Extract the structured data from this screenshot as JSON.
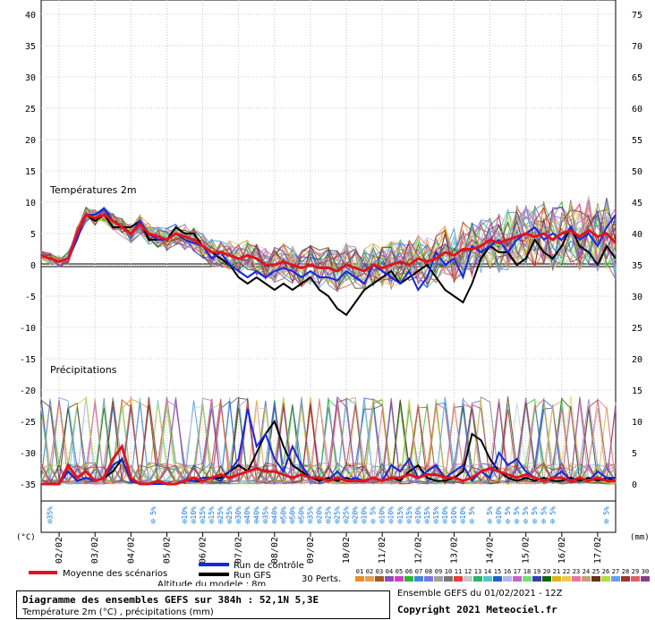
{
  "chart_data": {
    "type": "line",
    "temp_title": "Températures 2m",
    "precip_title": "Précipitations",
    "y_left_ticks": [
      "40",
      "35",
      "30",
      "25",
      "20",
      "15",
      "10",
      "5",
      "0",
      "-5",
      "-10",
      "-15",
      "-20",
      "-25",
      "-30",
      "-35"
    ],
    "y_right_ticks": [
      "75",
      "70",
      "65",
      "60",
      "55",
      "50",
      "45",
      "40",
      "35",
      "30",
      "25",
      "20",
      "15",
      "10",
      "5",
      "0"
    ],
    "y_unit_left": "(°C)",
    "y_unit_right": "(mm)",
    "temp_ylim": [
      -35,
      40
    ],
    "precip_ylim": [
      0,
      75
    ],
    "x_range_hours": [
      0,
      384
    ],
    "x_ticks": [
      "02/02",
      "03/02",
      "04/02",
      "05/02",
      "06/02",
      "07/02",
      "08/02",
      "09/02",
      "10/02",
      "11/02",
      "12/02",
      "13/02",
      "14/02",
      "15/02",
      "16/02",
      "17/02"
    ],
    "snow_probabilities": [
      {
        "hour": 6,
        "label": "35%"
      },
      {
        "hour": 75,
        "label": "5%"
      },
      {
        "hour": 96,
        "label": "10%"
      },
      {
        "hour": 102,
        "label": "10%"
      },
      {
        "hour": 108,
        "label": "15%"
      },
      {
        "hour": 114,
        "label": "15%"
      },
      {
        "hour": 120,
        "label": "25%"
      },
      {
        "hour": 126,
        "label": "25%"
      },
      {
        "hour": 132,
        "label": "30%"
      },
      {
        "hour": 138,
        "label": "40%"
      },
      {
        "hour": 144,
        "label": "40%"
      },
      {
        "hour": 150,
        "label": "35%"
      },
      {
        "hour": 156,
        "label": "40%"
      },
      {
        "hour": 162,
        "label": "50%"
      },
      {
        "hour": 168,
        "label": "50%"
      },
      {
        "hour": 174,
        "label": "50%"
      },
      {
        "hour": 180,
        "label": "35%"
      },
      {
        "hour": 186,
        "label": "20%"
      },
      {
        "hour": 192,
        "label": "25%"
      },
      {
        "hour": 198,
        "label": "25%"
      },
      {
        "hour": 204,
        "label": "25%"
      },
      {
        "hour": 210,
        "label": "20%"
      },
      {
        "hour": 216,
        "label": "10%"
      },
      {
        "hour": 222,
        "label": "5%"
      },
      {
        "hour": 228,
        "label": "10%"
      },
      {
        "hour": 234,
        "label": "10%"
      },
      {
        "hour": 240,
        "label": "15%"
      },
      {
        "hour": 246,
        "label": "15%"
      },
      {
        "hour": 252,
        "label": "10%"
      },
      {
        "hour": 258,
        "label": "15%"
      },
      {
        "hour": 264,
        "label": "15%"
      },
      {
        "hour": 270,
        "label": "10%"
      },
      {
        "hour": 276,
        "label": "10%"
      },
      {
        "hour": 282,
        "label": "10%"
      },
      {
        "hour": 288,
        "label": "5%"
      },
      {
        "hour": 300,
        "label": "5%"
      },
      {
        "hour": 306,
        "label": "10%"
      },
      {
        "hour": 312,
        "label": "5%"
      },
      {
        "hour": 318,
        "label": "5%"
      },
      {
        "hour": 324,
        "label": "5%"
      },
      {
        "hour": 330,
        "label": "5%"
      },
      {
        "hour": 336,
        "label": "5%"
      },
      {
        "hour": 342,
        "label": "5%"
      },
      {
        "hour": 378,
        "label": "5%"
      }
    ],
    "hours": [
      0,
      6,
      12,
      18,
      24,
      30,
      36,
      42,
      48,
      54,
      60,
      66,
      72,
      78,
      84,
      90,
      96,
      102,
      108,
      114,
      120,
      126,
      132,
      138,
      144,
      150,
      156,
      162,
      168,
      174,
      180,
      186,
      192,
      198,
      204,
      210,
      216,
      222,
      228,
      234,
      240,
      246,
      252,
      258,
      264,
      270,
      276,
      282,
      288,
      294,
      300,
      306,
      312,
      318,
      324,
      330,
      336,
      342,
      348,
      354,
      360,
      366,
      372,
      378,
      384
    ],
    "series": [
      {
        "name": "Moyenne des scénarios",
        "color": "#e0141e",
        "temp": [
          1.5,
          1,
          0.5,
          1,
          5,
          8,
          7.5,
          8,
          7,
          6,
          5,
          6.5,
          5,
          4.5,
          4,
          5,
          4.5,
          4,
          3,
          2,
          2,
          1.5,
          1,
          1.5,
          1,
          0,
          0,
          0.5,
          0,
          -0.5,
          0,
          -0.5,
          -0.5,
          -1,
          0,
          -0.5,
          -1,
          0,
          -0.5,
          0,
          0.5,
          0,
          1,
          0.5,
          1,
          2,
          1.5,
          2.5,
          2.5,
          3,
          4,
          3.5,
          4,
          4.5,
          5,
          4.5,
          5,
          4,
          5,
          5.5,
          4.5,
          5.5,
          4.5,
          5,
          3.5
        ],
        "precip": [
          0,
          0,
          0,
          3,
          1,
          2,
          0.5,
          1,
          4,
          6,
          1,
          0,
          0,
          0.5,
          0,
          0,
          0.5,
          1,
          0.5,
          1,
          1.5,
          1,
          1.5,
          2,
          2.5,
          2,
          2,
          1.5,
          1,
          1.5,
          1,
          1,
          0.5,
          1,
          0.5,
          0.5,
          0.5,
          1,
          0.5,
          1,
          1,
          1.5,
          1,
          1.5,
          1.5,
          1,
          1,
          0.5,
          1,
          2,
          2.5,
          2,
          1.5,
          1,
          1.5,
          1,
          0.5,
          1,
          1,
          0.5,
          1,
          0.5,
          1,
          0.5,
          0.5
        ]
      },
      {
        "name": "Run de contrôle",
        "color": "#1428dc",
        "temp": [
          1.5,
          1,
          0.5,
          1,
          4,
          8,
          8,
          9,
          7,
          6,
          5,
          7,
          5,
          4,
          4,
          5,
          4,
          3.5,
          3,
          1,
          2,
          0,
          -1,
          -2,
          -1,
          -2,
          -1,
          -0.5,
          -1,
          -2,
          -1,
          -2,
          -2,
          -2.5,
          -1,
          -2,
          -3,
          0,
          -1,
          -2,
          -3,
          -1,
          -4,
          -2,
          2,
          0,
          1,
          -2,
          3,
          2,
          3,
          4,
          2,
          4,
          5,
          6,
          4,
          5,
          4,
          6,
          4,
          5,
          3,
          6,
          8
        ],
        "precip": [
          0,
          0,
          0,
          2,
          0.5,
          1,
          0.5,
          1,
          3,
          4,
          0.5,
          0,
          0,
          0,
          0,
          0,
          0.5,
          0.5,
          1,
          1,
          0.5,
          2,
          4,
          12,
          6,
          8,
          4,
          2,
          6,
          3,
          1,
          1,
          0.5,
          2,
          0.5,
          1,
          0.5,
          1,
          0.5,
          3,
          2,
          4,
          1,
          2,
          3,
          1,
          2,
          3,
          0.5,
          2,
          1,
          5,
          3,
          4,
          2,
          1,
          0.5,
          1,
          2,
          0.5,
          1,
          0.5,
          2,
          1,
          1
        ]
      },
      {
        "name": "Run GFS",
        "color": "#000000",
        "temp": [
          1.5,
          1,
          0.5,
          1,
          5,
          8,
          7,
          8,
          6,
          6,
          6,
          7,
          4,
          4,
          4,
          6,
          5,
          5,
          3,
          2,
          1,
          0,
          -2,
          -3,
          -2,
          -3,
          -4,
          -3,
          -4,
          -3,
          -2,
          -4,
          -5,
          -7,
          -8,
          -6,
          -4,
          -3,
          -2,
          -1,
          -3,
          -2,
          -1,
          0,
          -2,
          -4,
          -5,
          -6,
          -3,
          1,
          3,
          2,
          2,
          0,
          1,
          4,
          2,
          1,
          3,
          6,
          3,
          2,
          0,
          3,
          1
        ],
        "precip": [
          0,
          0,
          0,
          2,
          0.5,
          1,
          0.5,
          1,
          2,
          4,
          0.5,
          0,
          0,
          0,
          0,
          0,
          0.5,
          0.5,
          0.5,
          1,
          1,
          2,
          3,
          2,
          5,
          8,
          10,
          6,
          3,
          2,
          1,
          0.5,
          1,
          0.5,
          1,
          0.5,
          0.5,
          1,
          0.5,
          1,
          0.5,
          2,
          3,
          1,
          0.5,
          0.5,
          1,
          2,
          8,
          7,
          4,
          2,
          1,
          0.5,
          1,
          0.5,
          1,
          0.5,
          0.5,
          1,
          0.5,
          1,
          0.5,
          1,
          0.5
        ]
      }
    ],
    "legend": {
      "mean_label": "Moyenne des scénarios",
      "control_label": "Run de contrôle",
      "gfs_label": "Run GFS",
      "perts_label": "30 Perts.",
      "altitude_label": "Altitude du modele : 8m",
      "pert_numbers": [
        "01",
        "02",
        "03",
        "04",
        "05",
        "06",
        "07",
        "08",
        "09",
        "10",
        "11",
        "12",
        "13",
        "14",
        "15",
        "16",
        "17",
        "18",
        "19",
        "20",
        "21",
        "22",
        "23",
        "24",
        "25",
        "26",
        "27",
        "28",
        "29",
        "30"
      ],
      "pert_colors": [
        "#f08c28",
        "#e6a050",
        "#a05a28",
        "#8c50b4",
        "#d23cc8",
        "#32b432",
        "#3c8cdc",
        "#7878dc",
        "#a0a0a0",
        "#787878",
        "#e63c3c",
        "#c8c8c8",
        "#28b46e",
        "#50c8c8",
        "#1e64c8",
        "#b4b4f0",
        "#c864c8",
        "#78dc78",
        "#3c3cb4",
        "#146414",
        "#dcb41e",
        "#f0c850",
        "#e678a0",
        "#c8a078",
        "#643214",
        "#b4dc3c",
        "#64a0f0",
        "#a03232",
        "#dc6464",
        "#8c3c8c"
      ]
    }
  },
  "info": {
    "title": "Diagramme des ensembles GEFS sur 384h : 52,1N 5,3E",
    "subtitle": "Température 2m (°C) , précipitations (mm)",
    "run": "Ensemble GEFS du 01/02/2021 - 12Z",
    "copyright": "Copyright 2021 Meteociel.fr"
  }
}
